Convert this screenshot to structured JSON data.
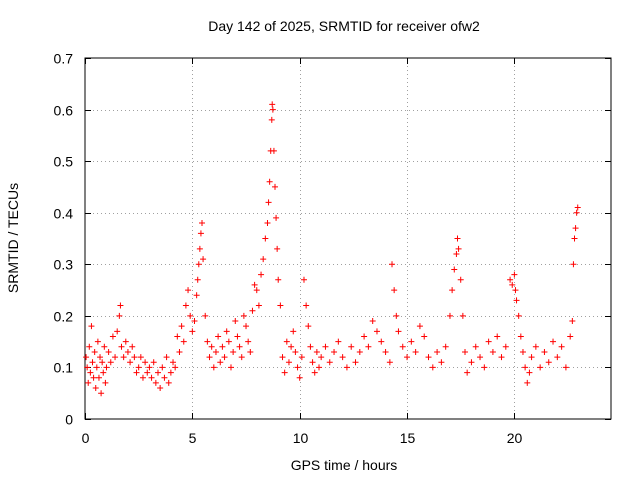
{
  "chart_data": {
    "type": "scatter",
    "title": "Day 142 of 2025, SRMTID for receiver ofw2",
    "xlabel": "GPS time / hours",
    "ylabel": "SRMTID / TECUs",
    "xlim": [
      0,
      24.5
    ],
    "ylim": [
      0,
      0.7
    ],
    "xticks": [
      0,
      5,
      10,
      15,
      20
    ],
    "xtick_labels": [
      "0",
      "5",
      "10",
      "15",
      "20"
    ],
    "yticks": [
      0,
      0.1,
      0.2,
      0.3,
      0.4,
      0.5,
      0.6,
      0.7
    ],
    "ytick_labels": [
      "0",
      "0.1",
      "0.2",
      "0.3",
      "0.4",
      "0.5",
      "0.6",
      "0.7"
    ],
    "grid": true,
    "marker": "+",
    "color": "#ff0000",
    "series": [
      {
        "name": "SRMTID",
        "points": [
          [
            0.05,
            0.12
          ],
          [
            0.1,
            0.1
          ],
          [
            0.15,
            0.07
          ],
          [
            0.2,
            0.14
          ],
          [
            0.25,
            0.09
          ],
          [
            0.3,
            0.18
          ],
          [
            0.35,
            0.11
          ],
          [
            0.4,
            0.08
          ],
          [
            0.45,
            0.13
          ],
          [
            0.5,
            0.06
          ],
          [
            0.55,
            0.1
          ],
          [
            0.6,
            0.15
          ],
          [
            0.65,
            0.08
          ],
          [
            0.7,
            0.12
          ],
          [
            0.75,
            0.05
          ],
          [
            0.8,
            0.11
          ],
          [
            0.85,
            0.09
          ],
          [
            0.9,
            0.14
          ],
          [
            0.95,
            0.07
          ],
          [
            1.0,
            0.1
          ],
          [
            1.1,
            0.13
          ],
          [
            1.2,
            0.11
          ],
          [
            1.3,
            0.16
          ],
          [
            1.4,
            0.12
          ],
          [
            1.5,
            0.17
          ],
          [
            1.6,
            0.2
          ],
          [
            1.65,
            0.22
          ],
          [
            1.7,
            0.14
          ],
          [
            1.8,
            0.12
          ],
          [
            1.9,
            0.15
          ],
          [
            2.0,
            0.13
          ],
          [
            2.1,
            0.11
          ],
          [
            2.2,
            0.14
          ],
          [
            2.3,
            0.12
          ],
          [
            2.4,
            0.09
          ],
          [
            2.5,
            0.1
          ],
          [
            2.6,
            0.12
          ],
          [
            2.7,
            0.08
          ],
          [
            2.8,
            0.11
          ],
          [
            2.9,
            0.09
          ],
          [
            3.0,
            0.1
          ],
          [
            3.1,
            0.08
          ],
          [
            3.2,
            0.11
          ],
          [
            3.3,
            0.07
          ],
          [
            3.4,
            0.09
          ],
          [
            3.5,
            0.06
          ],
          [
            3.6,
            0.1
          ],
          [
            3.7,
            0.08
          ],
          [
            3.8,
            0.12
          ],
          [
            3.9,
            0.07
          ],
          [
            4.0,
            0.09
          ],
          [
            4.1,
            0.11
          ],
          [
            4.2,
            0.1
          ],
          [
            4.3,
            0.16
          ],
          [
            4.4,
            0.13
          ],
          [
            4.5,
            0.18
          ],
          [
            4.6,
            0.15
          ],
          [
            4.7,
            0.22
          ],
          [
            4.8,
            0.25
          ],
          [
            4.9,
            0.2
          ],
          [
            5.0,
            0.17
          ],
          [
            5.1,
            0.19
          ],
          [
            5.2,
            0.24
          ],
          [
            5.25,
            0.27
          ],
          [
            5.3,
            0.3
          ],
          [
            5.35,
            0.33
          ],
          [
            5.4,
            0.36
          ],
          [
            5.45,
            0.38
          ],
          [
            5.5,
            0.31
          ],
          [
            5.6,
            0.2
          ],
          [
            5.7,
            0.15
          ],
          [
            5.8,
            0.12
          ],
          [
            5.9,
            0.14
          ],
          [
            6.0,
            0.1
          ],
          [
            6.1,
            0.13
          ],
          [
            6.2,
            0.16
          ],
          [
            6.3,
            0.11
          ],
          [
            6.4,
            0.14
          ],
          [
            6.5,
            0.12
          ],
          [
            6.6,
            0.17
          ],
          [
            6.7,
            0.15
          ],
          [
            6.8,
            0.1
          ],
          [
            6.9,
            0.13
          ],
          [
            7.0,
            0.19
          ],
          [
            7.1,
            0.16
          ],
          [
            7.2,
            0.14
          ],
          [
            7.3,
            0.12
          ],
          [
            7.4,
            0.2
          ],
          [
            7.5,
            0.18
          ],
          [
            7.6,
            0.15
          ],
          [
            7.7,
            0.13
          ],
          [
            7.8,
            0.21
          ],
          [
            7.9,
            0.26
          ],
          [
            8.0,
            0.25
          ],
          [
            8.1,
            0.22
          ],
          [
            8.2,
            0.28
          ],
          [
            8.3,
            0.31
          ],
          [
            8.4,
            0.35
          ],
          [
            8.5,
            0.38
          ],
          [
            8.55,
            0.42
          ],
          [
            8.6,
            0.46
          ],
          [
            8.65,
            0.52
          ],
          [
            8.7,
            0.58
          ],
          [
            8.72,
            0.61
          ],
          [
            8.75,
            0.6
          ],
          [
            8.8,
            0.52
          ],
          [
            8.85,
            0.45
          ],
          [
            8.9,
            0.39
          ],
          [
            8.95,
            0.33
          ],
          [
            9.0,
            0.27
          ],
          [
            9.1,
            0.22
          ],
          [
            9.2,
            0.12
          ],
          [
            9.3,
            0.09
          ],
          [
            9.4,
            0.15
          ],
          [
            9.5,
            0.11
          ],
          [
            9.6,
            0.14
          ],
          [
            9.7,
            0.17
          ],
          [
            9.8,
            0.13
          ],
          [
            9.9,
            0.1
          ],
          [
            10.0,
            0.08
          ],
          [
            10.1,
            0.12
          ],
          [
            10.2,
            0.27
          ],
          [
            10.3,
            0.22
          ],
          [
            10.4,
            0.18
          ],
          [
            10.5,
            0.14
          ],
          [
            10.6,
            0.11
          ],
          [
            10.7,
            0.09
          ],
          [
            10.8,
            0.13
          ],
          [
            10.9,
            0.1
          ],
          [
            11.0,
            0.12
          ],
          [
            11.2,
            0.14
          ],
          [
            11.4,
            0.11
          ],
          [
            11.6,
            0.13
          ],
          [
            11.8,
            0.15
          ],
          [
            12.0,
            0.12
          ],
          [
            12.2,
            0.1
          ],
          [
            12.4,
            0.14
          ],
          [
            12.6,
            0.11
          ],
          [
            12.8,
            0.13
          ],
          [
            13.0,
            0.16
          ],
          [
            13.2,
            0.14
          ],
          [
            13.4,
            0.19
          ],
          [
            13.6,
            0.17
          ],
          [
            13.8,
            0.15
          ],
          [
            14.0,
            0.13
          ],
          [
            14.2,
            0.11
          ],
          [
            14.3,
            0.3
          ],
          [
            14.4,
            0.25
          ],
          [
            14.5,
            0.2
          ],
          [
            14.6,
            0.17
          ],
          [
            14.8,
            0.14
          ],
          [
            15.0,
            0.12
          ],
          [
            15.2,
            0.15
          ],
          [
            15.4,
            0.13
          ],
          [
            15.6,
            0.18
          ],
          [
            15.8,
            0.16
          ],
          [
            16.0,
            0.12
          ],
          [
            16.2,
            0.1
          ],
          [
            16.4,
            0.13
          ],
          [
            16.6,
            0.11
          ],
          [
            16.8,
            0.14
          ],
          [
            17.0,
            0.2
          ],
          [
            17.1,
            0.25
          ],
          [
            17.2,
            0.29
          ],
          [
            17.3,
            0.32
          ],
          [
            17.35,
            0.35
          ],
          [
            17.4,
            0.33
          ],
          [
            17.5,
            0.27
          ],
          [
            17.6,
            0.2
          ],
          [
            17.7,
            0.13
          ],
          [
            17.8,
            0.09
          ],
          [
            18.0,
            0.11
          ],
          [
            18.2,
            0.14
          ],
          [
            18.4,
            0.12
          ],
          [
            18.6,
            0.1
          ],
          [
            18.8,
            0.15
          ],
          [
            19.0,
            0.13
          ],
          [
            19.2,
            0.16
          ],
          [
            19.4,
            0.12
          ],
          [
            19.6,
            0.14
          ],
          [
            19.8,
            0.27
          ],
          [
            19.9,
            0.26
          ],
          [
            20.0,
            0.28
          ],
          [
            20.05,
            0.25
          ],
          [
            20.1,
            0.23
          ],
          [
            20.2,
            0.2
          ],
          [
            20.3,
            0.16
          ],
          [
            20.4,
            0.13
          ],
          [
            20.5,
            0.1
          ],
          [
            20.6,
            0.07
          ],
          [
            20.7,
            0.09
          ],
          [
            20.8,
            0.12
          ],
          [
            21.0,
            0.14
          ],
          [
            21.2,
            0.1
          ],
          [
            21.4,
            0.13
          ],
          [
            21.6,
            0.11
          ],
          [
            21.8,
            0.15
          ],
          [
            22.0,
            0.12
          ],
          [
            22.2,
            0.14
          ],
          [
            22.4,
            0.1
          ],
          [
            22.6,
            0.16
          ],
          [
            22.7,
            0.19
          ],
          [
            22.75,
            0.3
          ],
          [
            22.8,
            0.35
          ],
          [
            22.85,
            0.37
          ],
          [
            22.9,
            0.4
          ],
          [
            22.95,
            0.41
          ]
        ]
      }
    ]
  }
}
